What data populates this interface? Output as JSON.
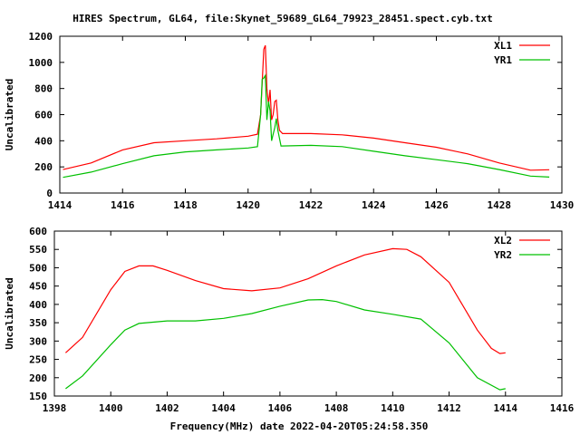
{
  "title": "HIRES Spectrum, GL64, file:Skynet_59689_GL64_79923_28451.spect.cyb.txt",
  "chart_data": [
    {
      "type": "line",
      "ylabel": "Uncalibrated",
      "xlabel": "",
      "xlim": [
        1414,
        1430
      ],
      "ylim": [
        0,
        1200
      ],
      "xticks": [
        "1414",
        "1416",
        "1418",
        "1420",
        "1422",
        "1424",
        "1426",
        "1428",
        "1430"
      ],
      "yticks": [
        "0",
        "200",
        "400",
        "600",
        "800",
        "1000",
        "1200"
      ],
      "legend": "top-right",
      "series": [
        {
          "name": "XL1",
          "color": "#ff0000",
          "x": [
            1414.1,
            1415,
            1416,
            1417,
            1418,
            1419,
            1420,
            1420.3,
            1420.4,
            1420.5,
            1420.55,
            1420.6,
            1420.65,
            1420.7,
            1420.75,
            1420.8,
            1420.85,
            1420.9,
            1420.95,
            1421.0,
            1421.1,
            1422,
            1423,
            1424,
            1425,
            1426,
            1427,
            1428,
            1429,
            1429.6
          ],
          "y": [
            180,
            230,
            330,
            385,
            400,
            415,
            435,
            450,
            600,
            1100,
            1130,
            800,
            680,
            790,
            560,
            600,
            700,
            710,
            560,
            480,
            455,
            455,
            445,
            420,
            385,
            350,
            300,
            230,
            175,
            178
          ]
        },
        {
          "name": "YR1",
          "color": "#00c000",
          "x": [
            1414.1,
            1415,
            1416,
            1417,
            1418,
            1419,
            1420,
            1420.3,
            1420.4,
            1420.45,
            1420.5,
            1420.55,
            1420.6,
            1420.65,
            1420.7,
            1420.75,
            1420.8,
            1420.85,
            1420.9,
            1420.95,
            1421.05,
            1422,
            1423,
            1424,
            1425,
            1426,
            1427,
            1428,
            1429,
            1429.6
          ],
          "y": [
            120,
            160,
            225,
            285,
            315,
            330,
            345,
            355,
            600,
            870,
            880,
            900,
            560,
            700,
            630,
            400,
            450,
            500,
            570,
            480,
            360,
            365,
            355,
            320,
            285,
            255,
            225,
            180,
            130,
            122
          ]
        }
      ]
    },
    {
      "type": "line",
      "ylabel": "Uncalibrated",
      "xlabel": "Frequency(MHz) date 2022-04-20T05:24:58.350",
      "xlim": [
        1398,
        1416
      ],
      "ylim": [
        150,
        600
      ],
      "xticks": [
        "1398",
        "1400",
        "1402",
        "1404",
        "1406",
        "1408",
        "1410",
        "1412",
        "1414",
        "1416"
      ],
      "yticks": [
        "150",
        "200",
        "250",
        "300",
        "350",
        "400",
        "450",
        "500",
        "550",
        "600"
      ],
      "legend": "top-right",
      "series": [
        {
          "name": "XL2",
          "color": "#ff0000",
          "x": [
            1398.4,
            1399,
            1400,
            1400.5,
            1401,
            1401.5,
            1402,
            1403,
            1404,
            1405,
            1406,
            1407,
            1408,
            1409,
            1410,
            1410.5,
            1411,
            1412,
            1413,
            1413.5,
            1413.8,
            1414
          ],
          "y": [
            268,
            310,
            440,
            490,
            505,
            505,
            493,
            465,
            443,
            437,
            445,
            470,
            505,
            535,
            552,
            550,
            530,
            460,
            330,
            280,
            266,
            268
          ]
        },
        {
          "name": "YR2",
          "color": "#00c000",
          "x": [
            1398.4,
            1399,
            1400,
            1400.5,
            1401,
            1402,
            1403,
            1404,
            1405,
            1406,
            1407,
            1407.5,
            1408,
            1409,
            1410,
            1411,
            1412,
            1413,
            1413.8,
            1414
          ],
          "y": [
            170,
            205,
            290,
            330,
            348,
            355,
            355,
            362,
            375,
            395,
            412,
            413,
            408,
            385,
            373,
            360,
            295,
            200,
            167,
            170
          ]
        }
      ]
    }
  ]
}
